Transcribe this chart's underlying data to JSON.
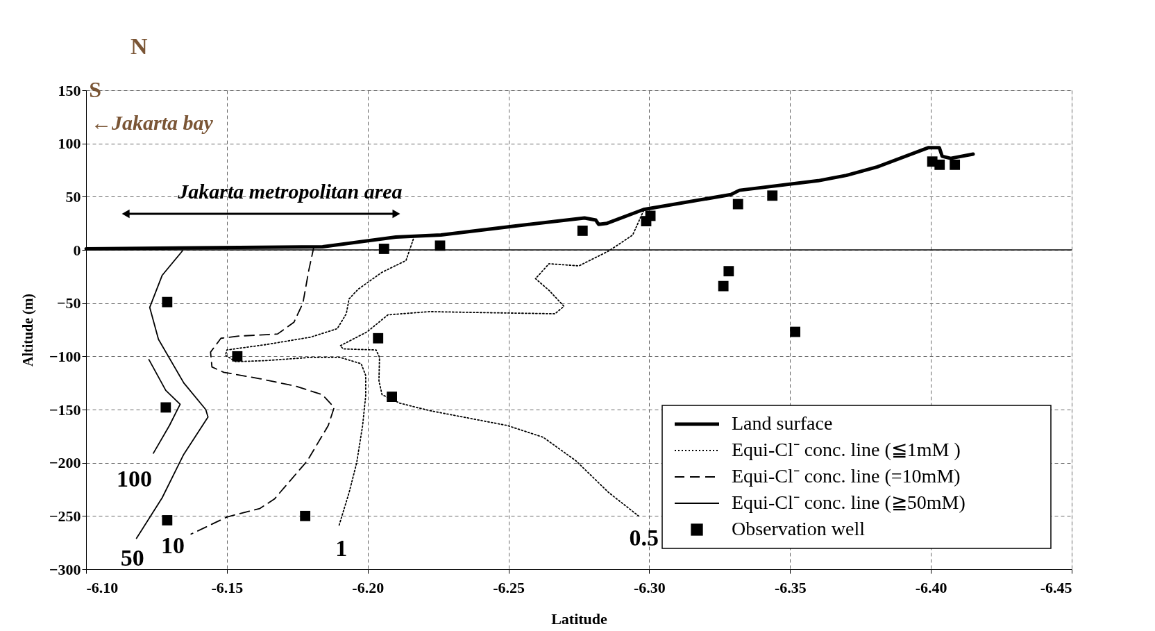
{
  "chart_data": {
    "type": "line",
    "xlabel": "Latitude",
    "ylabel": "Altitude (m)",
    "xlim": [
      -6.1,
      -6.45
    ],
    "ylim": [
      -300,
      150
    ],
    "xticks": [
      {
        "value": -6.1,
        "label": "-6.10"
      },
      {
        "value": -6.15,
        "label": "-6.15"
      },
      {
        "value": -6.2,
        "label": "-6.20"
      },
      {
        "value": -6.25,
        "label": "-6.25"
      },
      {
        "value": -6.3,
        "label": "-6.30"
      },
      {
        "value": -6.35,
        "label": "-6.35"
      },
      {
        "value": -6.4,
        "label": "-6.40"
      },
      {
        "value": -6.45,
        "label": "-6.45"
      }
    ],
    "yticks": [
      -300,
      -250,
      -200,
      -150,
      -100,
      -50,
      0,
      50,
      100,
      150
    ],
    "grid": true,
    "legend": "bottom right",
    "ref_lines": [
      {
        "axis": "y",
        "value": 0,
        "color": "#000000",
        "line_style": "solid"
      }
    ],
    "series": [
      {
        "name": "Land surface",
        "color": "#000000",
        "line_style": "solid",
        "x": [
          -6.1,
          -6.184,
          -6.21,
          -6.226,
          -6.251,
          -6.277,
          -6.281,
          -6.282,
          -6.285,
          -6.298,
          -6.329,
          -6.332,
          -6.36,
          -6.37,
          -6.381,
          -6.399,
          -6.403,
          -6.404,
          -6.407,
          -6.415
        ],
        "values": [
          1,
          3,
          12,
          14,
          22,
          30,
          28,
          24,
          25,
          38,
          52,
          56,
          65,
          70,
          78,
          96,
          96,
          88,
          86,
          90
        ]
      },
      {
        "name": "Equi-Cl⁻ conc. line (≦1mM )",
        "color": "#000000",
        "line_style": "dotted",
        "x": [
          -6.2162,
          -6.2136,
          -6.2051,
          -6.1966,
          -6.1934,
          -6.1924,
          -6.1892,
          -6.1797,
          -6.1638,
          -6.15,
          -6.1495,
          -6.1532,
          -6.1638,
          -6.1797,
          -6.1903,
          -6.1977,
          -6.1993,
          -6.1993,
          -6.1982,
          -6.1961,
          -6.1934,
          -6.1897
        ],
        "values": [
          10,
          -10,
          -21,
          -37,
          -46,
          -60,
          -74,
          -82,
          -89,
          -94,
          -99,
          -105,
          -104,
          -101,
          -101,
          -107,
          -118,
          -137,
          -165,
          -200,
          -228,
          -260
        ]
      },
      {
        "color": "#000000",
        "line_style": "dotted",
        "x": [
          -6.298,
          -6.2941,
          -6.2856,
          -6.275,
          -6.2644,
          -6.2596,
          -6.2644,
          -6.2697,
          -6.2665,
          -6.2432,
          -6.222,
          -6.2072,
          -6.1998,
          -6.1903,
          -6.1913,
          -6.203,
          -6.2042,
          -6.204,
          -6.2051,
          -6.2114,
          -6.222,
          -6.2496,
          -6.2623,
          -6.2739,
          -6.2856,
          -6.2962
        ],
        "values": [
          37,
          14,
          -1,
          -15,
          -13,
          -27,
          -38,
          -53,
          -60,
          -59,
          -58,
          -61,
          -77,
          -90,
          -93,
          -94,
          -101,
          -123,
          -136,
          -144,
          -151,
          -165,
          -176,
          -198,
          -228,
          -250
        ]
      },
      {
        "name": "Equi-Cl⁻ conc. line (=10mM)",
        "color": "#000000",
        "line_style": "dashed",
        "x": [
          -6.1809,
          -6.1791,
          -6.177,
          -6.1738,
          -6.168,
          -6.1542,
          -6.1479,
          -6.1442,
          -6.1447,
          -6.1489,
          -6.1617,
          -6.1744,
          -6.1839,
          -6.1881,
          -6.186,
          -6.1786,
          -6.1669,
          -6.1617,
          -6.15,
          -6.1373
        ],
        "values": [
          3,
          -19,
          -50,
          -68,
          -79,
          -81,
          -83,
          -96,
          -110,
          -115,
          -121,
          -128,
          -136,
          -148,
          -165,
          -198,
          -234,
          -243,
          -251,
          -267
        ]
      },
      {
        "name": "Equi-Cl⁻ conc. line (≧50mM)",
        "color": "#000000",
        "line_style": "solid",
        "x": [
          -6.1342,
          -6.127,
          -6.1226,
          -6.1257,
          -6.1347,
          -6.1425,
          -6.1433,
          -6.1347,
          -6.127,
          -6.1179
        ],
        "values": [
          -1,
          -24,
          -54,
          -84,
          -125,
          -150,
          -157,
          -192,
          -233,
          -271
        ]
      },
      {
        "color": "#000000",
        "line_style": "solid",
        "x": [
          -6.1223,
          -6.1283,
          -6.1334,
          -6.1296,
          -6.1239
        ],
        "values": [
          -103,
          -132,
          -145,
          -165,
          -191
        ]
      },
      {
        "name": "Observation well",
        "type": "scatter",
        "marker": "square",
        "color": "#000000",
        "x": [
          -6.1288,
          -6.1283,
          -6.1288,
          -6.1537,
          -6.1778,
          -6.2037,
          -6.2058,
          -6.2086,
          -6.2257,
          -6.2763,
          -6.2989,
          -6.3004,
          -6.3263,
          -6.3282,
          -6.3315,
          -6.3437,
          -6.3518,
          -6.4005,
          -6.4031,
          -6.4085
        ],
        "values": [
          -49,
          -148,
          -254,
          -100,
          -250,
          -83,
          1,
          -138,
          4,
          18,
          27,
          32,
          -34,
          -20,
          43,
          51,
          -77,
          83,
          80,
          80
        ]
      }
    ],
    "annotations": [
      "N",
      "S",
      "←Jakarta bay",
      "Jakarta metropolitan area",
      "100",
      "50",
      "10",
      "1",
      "0.5"
    ]
  }
}
